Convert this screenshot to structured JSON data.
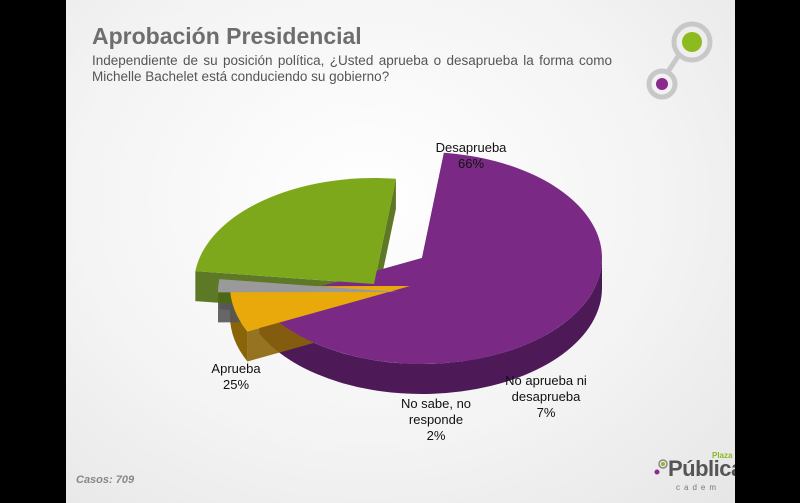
{
  "title": "Aprobación Presidencial",
  "subtitle": "Independiente de su posición política, ¿Usted aprueba o desaprueba la forma como Michelle Bachelet está conduciendo su gobierno?",
  "footer": {
    "casos": "Casos: 709"
  },
  "brand": {
    "main": "Pública",
    "plaza": "Plaza",
    "sub": "cadem"
  },
  "chart_data": {
    "type": "pie",
    "slices": [
      {
        "label_lines": [
          "Desaprueba",
          "66%"
        ],
        "value": 66,
        "color": "#7a2a85",
        "side": "#4e1957"
      },
      {
        "label_lines": [
          "No aprueba ni",
          "desaprueba",
          "7%"
        ],
        "value": 7,
        "color": "#e9a90b",
        "side": "#8a6408"
      },
      {
        "label_lines": [
          "No sabe, no",
          "responde",
          "2%"
        ],
        "value": 2,
        "color": "#9a9a9a",
        "side": "#555555"
      },
      {
        "label_lines": [
          "Aprueba",
          "25%"
        ],
        "value": 25,
        "color": "#7ea81c",
        "side": "#4c6a0e"
      }
    ]
  }
}
